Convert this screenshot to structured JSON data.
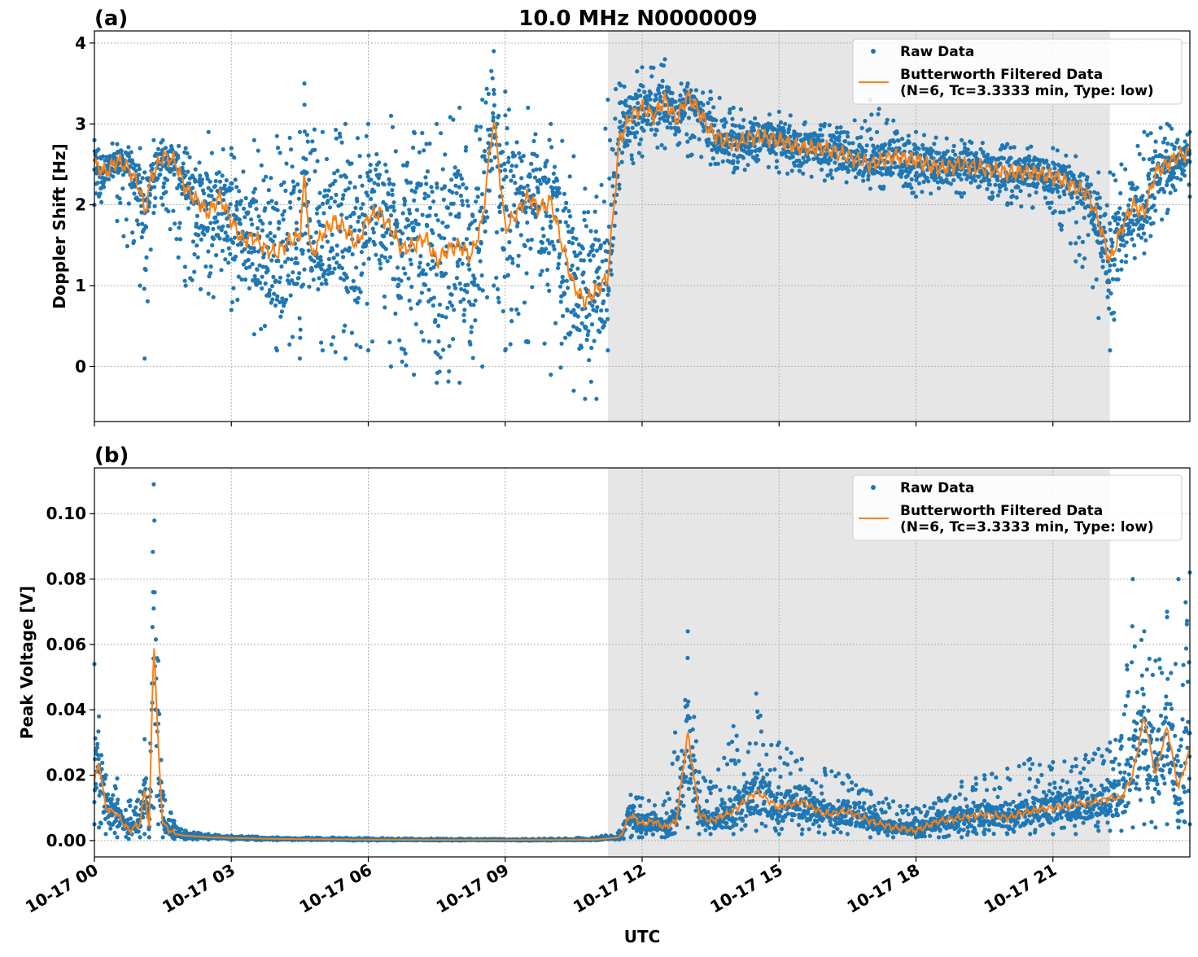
{
  "figure": {
    "title": "10.0 MHz N0000009",
    "xlabel": "UTC",
    "colors": {
      "raw": "#1f77b4",
      "filtered": "#ff7f0e",
      "shade": "#e6e6e6",
      "grid": "#b0b0b0"
    }
  },
  "chart_data": [
    {
      "panel": "(a)",
      "type": "scatter",
      "ylabel": "Doppler Shift [Hz]",
      "xlim": [
        "10-17 00:00",
        "10-18 00:00"
      ],
      "ylim": [
        -0.68,
        4.15
      ],
      "xticks": [
        "10-17 00",
        "10-17 03",
        "10-17 06",
        "10-17 09",
        "10-17 12",
        "10-17 15",
        "10-17 18",
        "10-17 21"
      ],
      "yticks": [
        0,
        1,
        2,
        3,
        4
      ],
      "shaded_region_hours": [
        11.25,
        22.25
      ],
      "legend": {
        "placement": "top-right",
        "entries": [
          "Raw Data",
          "Butterworth Filtered Data",
          "(N=6, Tc=3.3333 min, Type: low)"
        ]
      },
      "series": [
        {
          "name": "Butterworth Filtered Data",
          "x_hours": [
            0,
            0.25,
            0.5,
            0.75,
            1,
            1.1,
            1.25,
            1.5,
            1.75,
            2,
            2.25,
            2.5,
            2.75,
            3,
            3.25,
            3.5,
            3.75,
            4,
            4.25,
            4.5,
            4.6,
            4.75,
            5,
            5.25,
            5.5,
            5.75,
            6,
            6.25,
            6.5,
            6.75,
            7,
            7.25,
            7.5,
            7.75,
            8,
            8.25,
            8.5,
            8.75,
            9,
            9.25,
            9.5,
            9.75,
            10,
            10.25,
            10.5,
            10.75,
            11,
            11.25,
            11.5,
            11.75,
            12,
            12.25,
            12.5,
            12.75,
            13,
            13.25,
            13.5,
            13.75,
            14,
            14.5,
            15,
            15.5,
            16,
            16.5,
            17,
            17.5,
            18,
            18.5,
            19,
            19.5,
            20,
            20.5,
            21,
            21.25,
            21.5,
            21.75,
            22,
            22.25,
            22.5,
            22.75,
            23,
            23.25,
            23.5,
            23.75,
            24
          ],
          "y": [
            2.5,
            2.4,
            2.55,
            2.45,
            2.2,
            1.9,
            2.35,
            2.6,
            2.55,
            2.2,
            2.05,
            1.9,
            2.1,
            1.8,
            1.55,
            1.6,
            1.45,
            1.4,
            1.55,
            1.6,
            2.35,
            1.35,
            1.65,
            1.8,
            1.7,
            1.5,
            1.85,
            1.9,
            1.7,
            1.45,
            1.5,
            1.6,
            1.3,
            1.45,
            1.5,
            1.35,
            1.8,
            3.1,
            1.7,
            1.9,
            2.1,
            1.95,
            2.05,
            1.5,
            1.0,
            0.8,
            0.95,
            1.1,
            2.8,
            3.1,
            3.2,
            3.1,
            3.3,
            3.05,
            3.35,
            3.15,
            2.9,
            2.8,
            2.75,
            2.85,
            2.8,
            2.7,
            2.7,
            2.6,
            2.5,
            2.6,
            2.55,
            2.45,
            2.5,
            2.45,
            2.4,
            2.4,
            2.35,
            2.3,
            2.2,
            2.15,
            1.8,
            1.3,
            1.7,
            2.0,
            1.9,
            2.4,
            2.5,
            2.6,
            2.65
          ]
        },
        {
          "name": "Raw Data",
          "x_hours": [
            0,
            0.5,
            1.0,
            1.1,
            1.3,
            1.5,
            2.0,
            2.5,
            3.0,
            3.5,
            4.0,
            4.5,
            4.6,
            5.0,
            5.5,
            6.0,
            6.5,
            7.0,
            7.5,
            8.0,
            8.5,
            8.75,
            9.0,
            9.5,
            10.0,
            10.5,
            10.75,
            11.0,
            11.25,
            11.5,
            12.0,
            12.5,
            13.0,
            13.5,
            14.0,
            15.0,
            16.0,
            17.0,
            18.0,
            19.0,
            20.0,
            21.0,
            21.5,
            22.0,
            22.25,
            22.5,
            23.0,
            23.5,
            24.0
          ],
          "y_min": [
            2.0,
            1.8,
            1.0,
            0.1,
            1.9,
            2.0,
            1.0,
            0.9,
            0.7,
            0.4,
            0.2,
            0.1,
            1.2,
            0.2,
            0.1,
            0.2,
            0.0,
            -0.1,
            -0.2,
            -0.2,
            0.0,
            1.0,
            0.2,
            0.3,
            -0.1,
            -0.3,
            -0.4,
            -0.4,
            0.2,
            2.2,
            2.6,
            2.7,
            2.6,
            2.5,
            2.4,
            2.4,
            2.3,
            2.2,
            2.1,
            2.1,
            2.0,
            1.9,
            1.3,
            0.6,
            0.2,
            1.2,
            1.4,
            1.9,
            2.1
          ],
          "y_max": [
            2.8,
            2.75,
            2.7,
            2.4,
            2.8,
            2.8,
            2.7,
            2.9,
            2.7,
            2.8,
            2.85,
            2.9,
            3.5,
            2.9,
            3.0,
            3.0,
            3.1,
            2.9,
            3.0,
            3.2,
            3.3,
            3.9,
            3.4,
            3.2,
            3.0,
            2.6,
            2.2,
            2.1,
            3.3,
            3.5,
            3.7,
            3.8,
            3.5,
            3.4,
            3.2,
            3.15,
            3.0,
            3.3,
            2.9,
            2.8,
            2.75,
            2.7,
            2.6,
            2.4,
            2.4,
            2.5,
            2.9,
            3.0,
            2.9
          ]
        }
      ]
    },
    {
      "panel": "(b)",
      "type": "scatter",
      "ylabel": "Peak Voltage [V]",
      "xlim": [
        "10-17 00:00",
        "10-18 00:00"
      ],
      "ylim": [
        -0.005,
        0.114
      ],
      "xticks": [
        "10-17 00",
        "10-17 03",
        "10-17 06",
        "10-17 09",
        "10-17 12",
        "10-17 15",
        "10-17 18",
        "10-17 21"
      ],
      "yticks": [
        "0.00",
        "0.02",
        "0.04",
        "0.06",
        "0.08",
        "0.10"
      ],
      "shaded_region_hours": [
        11.25,
        22.25
      ],
      "legend": {
        "placement": "top-right",
        "entries": [
          "Raw Data",
          "Butterworth Filtered Data",
          "(N=6, Tc=3.3333 min, Type: low)"
        ]
      },
      "series": [
        {
          "name": "Butterworth Filtered Data",
          "x_hours": [
            0,
            0.1,
            0.25,
            0.5,
            0.75,
            1.0,
            1.1,
            1.2,
            1.3,
            1.4,
            1.5,
            1.75,
            2.0,
            2.5,
            3.0,
            4.0,
            6.0,
            8.0,
            10.0,
            11.0,
            11.5,
            11.75,
            12.0,
            12.25,
            12.5,
            12.75,
            13.0,
            13.25,
            13.5,
            14.0,
            14.5,
            15.0,
            15.5,
            16.0,
            16.5,
            17.0,
            17.5,
            18.0,
            18.5,
            19.0,
            19.5,
            20.0,
            20.5,
            21.0,
            21.5,
            22.0,
            22.25,
            22.5,
            22.75,
            23.0,
            23.25,
            23.5,
            23.75,
            24.0
          ],
          "y": [
            0.018,
            0.024,
            0.01,
            0.008,
            0.003,
            0.005,
            0.016,
            0.003,
            0.062,
            0.028,
            0.005,
            0.002,
            0.0015,
            0.001,
            0.0008,
            0.0005,
            0.0003,
            0.0002,
            0.0002,
            0.0003,
            0.001,
            0.008,
            0.005,
            0.006,
            0.004,
            0.006,
            0.033,
            0.008,
            0.006,
            0.009,
            0.015,
            0.01,
            0.012,
            0.008,
            0.009,
            0.006,
            0.004,
            0.003,
            0.006,
            0.007,
            0.008,
            0.007,
            0.009,
            0.01,
            0.011,
            0.012,
            0.013,
            0.013,
            0.02,
            0.038,
            0.02,
            0.035,
            0.016,
            0.028
          ]
        },
        {
          "name": "Raw Data",
          "x_hours": [
            0,
            0.1,
            0.25,
            0.5,
            0.75,
            1.0,
            1.1,
            1.2,
            1.3,
            1.4,
            1.5,
            1.75,
            2.0,
            2.5,
            3.0,
            4.0,
            6.0,
            8.0,
            10.0,
            11.0,
            11.5,
            11.75,
            12.0,
            12.5,
            13.0,
            13.25,
            13.5,
            14.0,
            14.5,
            15.0,
            15.5,
            16.0,
            16.5,
            17.0,
            17.5,
            18.0,
            18.5,
            19.0,
            19.5,
            20.0,
            20.5,
            21.0,
            21.5,
            22.0,
            22.25,
            22.5,
            22.75,
            23.0,
            23.25,
            23.5,
            23.75,
            24.0
          ],
          "y_min": [
            0.005,
            0.004,
            0.002,
            0.001,
            0.0005,
            0.001,
            0.002,
            0.001,
            0.01,
            0.005,
            0.001,
            0.0005,
            0.0004,
            0.0003,
            0.0002,
            0.0001,
            0.0,
            0.0,
            0.0,
            0.0001,
            0.0003,
            0.001,
            0.001,
            0.001,
            0.004,
            0.002,
            0.002,
            0.002,
            0.003,
            0.002,
            0.002,
            0.002,
            0.002,
            0.001,
            0.001,
            0.001,
            0.001,
            0.001,
            0.002,
            0.002,
            0.002,
            0.002,
            0.002,
            0.003,
            0.003,
            0.003,
            0.004,
            0.005,
            0.004,
            0.005,
            0.004,
            0.005
          ],
          "y_max": [
            0.054,
            0.038,
            0.02,
            0.019,
            0.012,
            0.015,
            0.031,
            0.01,
            0.109,
            0.055,
            0.015,
            0.006,
            0.003,
            0.002,
            0.0015,
            0.001,
            0.0008,
            0.0006,
            0.0006,
            0.001,
            0.003,
            0.014,
            0.013,
            0.012,
            0.064,
            0.021,
            0.018,
            0.035,
            0.045,
            0.03,
            0.025,
            0.022,
            0.02,
            0.015,
            0.012,
            0.01,
            0.013,
            0.018,
            0.02,
            0.022,
            0.025,
            0.024,
            0.025,
            0.028,
            0.03,
            0.032,
            0.08,
            0.064,
            0.055,
            0.07,
            0.08,
            0.082
          ]
        }
      ]
    }
  ]
}
